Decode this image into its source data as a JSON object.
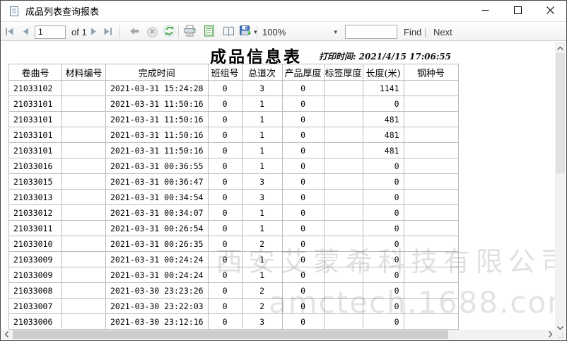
{
  "window": {
    "title": "成品列表查询报表"
  },
  "toolbar": {
    "page_number": "1",
    "page_of_label": "of 1",
    "zoom_value": "100%",
    "find_label": "Find",
    "find_next_separator": "|",
    "next_label": "Next",
    "export_caret": "▾",
    "zoom_caret": "▾"
  },
  "report": {
    "title": "成品信息表",
    "print_time_label": "打印时间:",
    "print_time_value": "2021/4/15 17:06:55",
    "watermark_company": "西安艾蒙希科技有限公司",
    "watermark_domain": "amctech.1688.com",
    "table": {
      "columns": [
        "卷曲号",
        "材料编号",
        "完成时间",
        "班组号",
        "总道次",
        "产品厚度",
        "标签厚度",
        "长度(米)",
        "钢种号"
      ],
      "rows": [
        [
          "21033102",
          "",
          "2021-03-31 15:24:28",
          "0",
          "3",
          "0",
          "",
          "1141",
          ""
        ],
        [
          "21033101",
          "",
          "2021-03-31 11:50:16",
          "0",
          "1",
          "0",
          "",
          "0",
          ""
        ],
        [
          "21033101",
          "",
          "2021-03-31 11:50:16",
          "0",
          "1",
          "0",
          "",
          "481",
          ""
        ],
        [
          "21033101",
          "",
          "2021-03-31 11:50:16",
          "0",
          "1",
          "0",
          "",
          "481",
          ""
        ],
        [
          "21033101",
          "",
          "2021-03-31 11:50:16",
          "0",
          "1",
          "0",
          "",
          "481",
          ""
        ],
        [
          "21033016",
          "",
          "2021-03-31 00:36:55",
          "0",
          "1",
          "0",
          "",
          "0",
          ""
        ],
        [
          "21033015",
          "",
          "2021-03-31 00:36:47",
          "0",
          "3",
          "0",
          "",
          "0",
          ""
        ],
        [
          "21033013",
          "",
          "2021-03-31 00:34:54",
          "0",
          "3",
          "0",
          "",
          "0",
          ""
        ],
        [
          "21033012",
          "",
          "2021-03-31 00:34:07",
          "0",
          "1",
          "0",
          "",
          "0",
          ""
        ],
        [
          "21033011",
          "",
          "2021-03-31 00:26:54",
          "0",
          "1",
          "0",
          "",
          "0",
          ""
        ],
        [
          "21033010",
          "",
          "2021-03-31 00:26:35",
          "0",
          "2",
          "0",
          "",
          "0",
          ""
        ],
        [
          "21033009",
          "",
          "2021-03-31 00:24:24",
          "0",
          "1",
          "0",
          "",
          "0",
          ""
        ],
        [
          "21033009",
          "",
          "2021-03-31 00:24:24",
          "0",
          "1",
          "0",
          "",
          "0",
          ""
        ],
        [
          "21033008",
          "",
          "2021-03-30 23:23:26",
          "0",
          "2",
          "0",
          "",
          "0",
          ""
        ],
        [
          "21033007",
          "",
          "2021-03-30 23:22:03",
          "0",
          "2",
          "0",
          "",
          "0",
          ""
        ],
        [
          "21033006",
          "",
          "2021-03-30 23:12:16",
          "0",
          "3",
          "0",
          "",
          "0",
          ""
        ]
      ]
    }
  },
  "colors": {
    "nav_icon_gray": "#8fa3b2",
    "refresh_green": "#3a9d3a",
    "save_blue": "#3f6fb5",
    "grid_border": "#bdbdbd",
    "watermark_gray": "#3c3c3c",
    "toolbar_bg": "#f2f2f2"
  }
}
